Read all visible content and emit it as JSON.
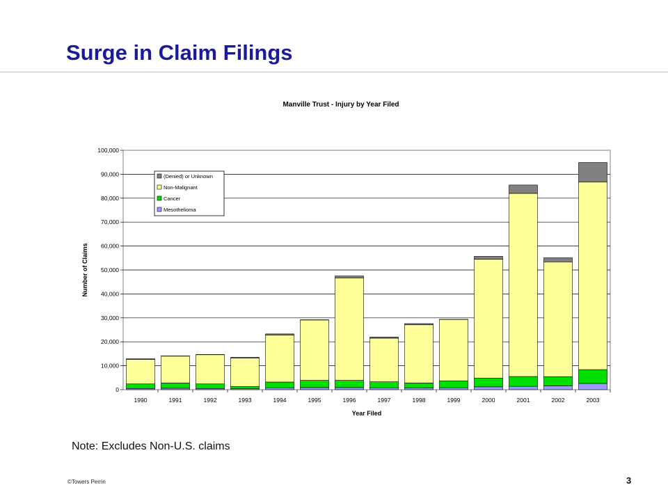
{
  "slide": {
    "title": "Surge in Claim Filings",
    "note": "Note: Excludes Non-U.S. claims",
    "footer": "©Towers Perrin",
    "page_number": "3"
  },
  "chart_data": {
    "type": "bar",
    "stacked": true,
    "title": "Manville Trust - Injury by Year Filed",
    "xlabel": "Year Filed",
    "ylabel": "Number of Claims",
    "ylim": [
      0,
      100000
    ],
    "ytick_step": 10000,
    "grid": true,
    "legend_position": "top-left",
    "categories": [
      "1990",
      "1991",
      "1992",
      "1993",
      "1994",
      "1995",
      "1996",
      "1997",
      "1998",
      "1999",
      "2000",
      "2001",
      "2002",
      "2003"
    ],
    "y_tick_labels": [
      "0",
      "10,000",
      "20,000",
      "30,000",
      "40,000",
      "50,000",
      "60,000",
      "70,000",
      "80,000",
      "90,000",
      "100,000"
    ],
    "series": [
      {
        "name": "Mesothelioma",
        "color": "#9999ff",
        "values": [
          500,
          600,
          500,
          400,
          800,
          900,
          900,
          800,
          700,
          800,
          1200,
          1400,
          1600,
          2600
        ]
      },
      {
        "name": "Cancer",
        "color": "#00dd00",
        "values": [
          1900,
          2200,
          1900,
          900,
          2400,
          3000,
          3000,
          2500,
          2100,
          2900,
          3600,
          4100,
          3800,
          5800
        ]
      },
      {
        "name": "Non-Malignant",
        "color": "#ffff99",
        "values": [
          10200,
          11200,
          12200,
          11900,
          19600,
          25200,
          42800,
          18200,
          24300,
          25600,
          49700,
          76500,
          48000,
          78400
        ]
      },
      {
        "name": "(Denied) or Unknown",
        "color": "#808080",
        "values": [
          300,
          100,
          100,
          300,
          500,
          100,
          800,
          500,
          500,
          100,
          1200,
          3500,
          1700,
          8100
        ]
      }
    ],
    "legend": [
      "(Denied) or Unknown",
      "Non-Malignant",
      "Cancer",
      "Mesothelioma"
    ]
  }
}
